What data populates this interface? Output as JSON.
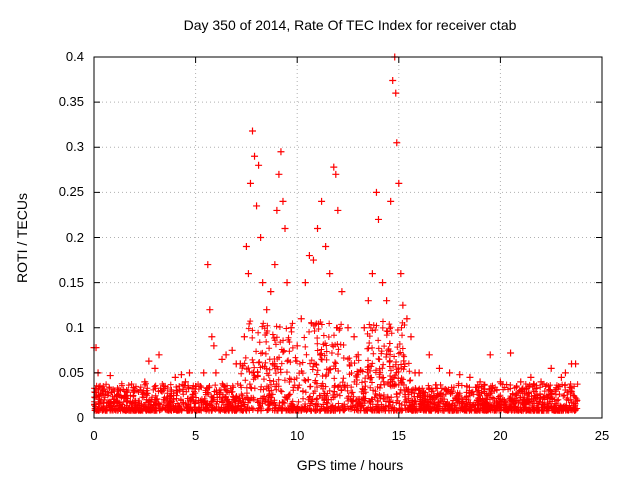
{
  "chart_data": {
    "type": "scatter",
    "title": "Day 350 of 2014, Rate Of TEC Index for receiver ctab",
    "xlabel": "GPS time / hours",
    "ylabel": "ROTI / TECUs",
    "xlim": [
      0,
      25
    ],
    "ylim": [
      0,
      0.4
    ],
    "x_ticks": [
      "0",
      "5",
      "10",
      "15",
      "20",
      "25"
    ],
    "y_ticks": [
      "0",
      "0.05",
      "0.1",
      "0.15",
      "0.2",
      "0.25",
      "0.3",
      "0.35",
      "0.4"
    ],
    "grid": true,
    "marker": "+",
    "color": "#ff0000",
    "series": [
      {
        "points": [
          [
            0.0,
            0.078
          ],
          [
            0.1,
            0.078
          ],
          [
            0.2,
            0.05
          ],
          [
            0.3,
            0.035
          ],
          [
            0.5,
            0.02
          ],
          [
            0.8,
            0.047
          ],
          [
            1.0,
            0.03
          ],
          [
            1.5,
            0.025
          ],
          [
            2.0,
            0.03
          ],
          [
            2.5,
            0.04
          ],
          [
            2.7,
            0.063
          ],
          [
            3.0,
            0.055
          ],
          [
            3.2,
            0.07
          ],
          [
            3.5,
            0.035
          ],
          [
            4.0,
            0.045
          ],
          [
            4.3,
            0.048
          ],
          [
            4.5,
            0.04
          ],
          [
            4.7,
            0.05
          ],
          [
            5.0,
            0.035
          ],
          [
            5.4,
            0.05
          ],
          [
            5.6,
            0.17
          ],
          [
            5.7,
            0.12
          ],
          [
            5.8,
            0.09
          ],
          [
            5.9,
            0.08
          ],
          [
            6.0,
            0.05
          ],
          [
            6.3,
            0.065
          ],
          [
            6.5,
            0.07
          ],
          [
            6.8,
            0.075
          ],
          [
            7.0,
            0.06
          ],
          [
            7.2,
            0.06
          ],
          [
            7.4,
            0.09
          ],
          [
            7.5,
            0.19
          ],
          [
            7.6,
            0.16
          ],
          [
            7.7,
            0.26
          ],
          [
            7.8,
            0.318
          ],
          [
            7.9,
            0.29
          ],
          [
            8.0,
            0.235
          ],
          [
            8.1,
            0.28
          ],
          [
            8.2,
            0.2
          ],
          [
            8.3,
            0.15
          ],
          [
            8.5,
            0.12
          ],
          [
            8.7,
            0.14
          ],
          [
            8.9,
            0.17
          ],
          [
            9.0,
            0.23
          ],
          [
            9.1,
            0.27
          ],
          [
            9.2,
            0.295
          ],
          [
            9.3,
            0.24
          ],
          [
            9.4,
            0.21
          ],
          [
            9.5,
            0.15
          ],
          [
            9.7,
            0.1
          ],
          [
            10.0,
            0.08
          ],
          [
            10.2,
            0.11
          ],
          [
            10.4,
            0.15
          ],
          [
            10.6,
            0.18
          ],
          [
            10.8,
            0.175
          ],
          [
            11.0,
            0.21
          ],
          [
            11.2,
            0.24
          ],
          [
            11.4,
            0.19
          ],
          [
            11.6,
            0.16
          ],
          [
            11.8,
            0.278
          ],
          [
            11.9,
            0.27
          ],
          [
            12.0,
            0.23
          ],
          [
            12.2,
            0.14
          ],
          [
            12.5,
            0.1
          ],
          [
            12.8,
            0.09
          ],
          [
            13.0,
            0.07
          ],
          [
            13.3,
            0.1
          ],
          [
            13.5,
            0.13
          ],
          [
            13.7,
            0.16
          ],
          [
            13.9,
            0.25
          ],
          [
            14.0,
            0.22
          ],
          [
            14.2,
            0.15
          ],
          [
            14.4,
            0.13
          ],
          [
            14.6,
            0.24
          ],
          [
            14.7,
            0.374
          ],
          [
            14.8,
            0.4
          ],
          [
            14.85,
            0.36
          ],
          [
            14.9,
            0.305
          ],
          [
            15.0,
            0.26
          ],
          [
            15.1,
            0.16
          ],
          [
            15.2,
            0.125
          ],
          [
            15.4,
            0.11
          ],
          [
            15.6,
            0.09
          ],
          [
            15.8,
            0.05
          ],
          [
            16.0,
            0.05
          ],
          [
            16.5,
            0.07
          ],
          [
            17.0,
            0.055
          ],
          [
            17.5,
            0.05
          ],
          [
            18.0,
            0.048
          ],
          [
            18.5,
            0.045
          ],
          [
            19.0,
            0.04
          ],
          [
            19.5,
            0.07
          ],
          [
            20.0,
            0.04
          ],
          [
            20.5,
            0.072
          ],
          [
            21.0,
            0.04
          ],
          [
            21.5,
            0.045
          ],
          [
            22.0,
            0.04
          ],
          [
            22.5,
            0.055
          ],
          [
            23.0,
            0.045
          ],
          [
            23.2,
            0.05
          ],
          [
            23.5,
            0.06
          ],
          [
            23.7,
            0.06
          ]
        ]
      }
    ]
  }
}
